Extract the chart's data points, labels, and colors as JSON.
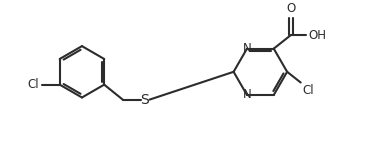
{
  "background_color": "#ffffff",
  "line_color": "#2c2c2c",
  "line_width": 1.5,
  "font_size": 8.5,
  "figsize": [
    3.78,
    1.51
  ],
  "xlim": [
    0,
    10
  ],
  "ylim": [
    0,
    4
  ]
}
